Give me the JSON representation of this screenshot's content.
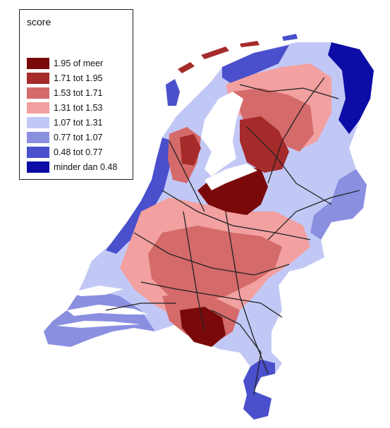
{
  "legend": {
    "title": "score",
    "items": [
      {
        "label": "1.95 of meer",
        "color": "#7a0a0a"
      },
      {
        "label": "1.71 tot 1.95",
        "color": "#a52a2a"
      },
      {
        "label": "1.53 tot 1.71",
        "color": "#d46a6a"
      },
      {
        "label": "1.31 tot 1.53",
        "color": "#f2a0a0"
      },
      {
        "label": "1.07 tot 1.31",
        "color": "#c2c8f5"
      },
      {
        "label": "0.77 tot 1.07",
        "color": "#8a8fe0"
      },
      {
        "label": "0.48 tot 0.77",
        "color": "#4a4fcc"
      },
      {
        "label": "minder dan 0.48",
        "color": "#0c0ca6"
      }
    ]
  },
  "map": {
    "country": "Netherlands",
    "road_color": "#222222",
    "water_color": "#ffffff"
  }
}
